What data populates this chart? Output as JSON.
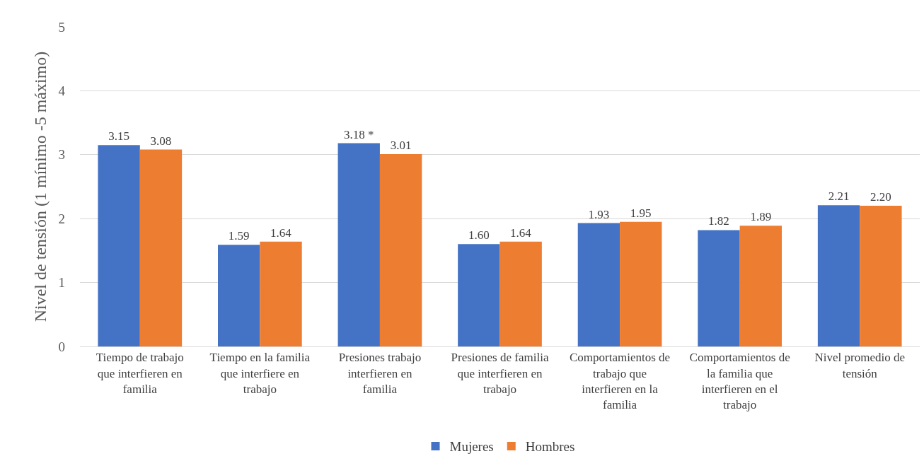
{
  "chart_data": {
    "type": "bar",
    "ylabel": "Nivel de tensión (1 mínimo -5 máximo)",
    "categories": [
      "Tiempo de trabajo que interfieren en familia",
      "Tiempo en la familia que interfiere en trabajo",
      "Presiones trabajo interfieren en familia",
      "Presiones de familia que interfieren en trabajo",
      "Comportamientos de trabajo que interfieren en la familia",
      "Comportamientos de la familia que interfieren en el trabajo",
      "Nivel promedio de tensión"
    ],
    "series": [
      {
        "name": "Mujeres",
        "color": "#4472c4",
        "values": [
          3.15,
          1.59,
          3.18,
          1.6,
          1.93,
          1.82,
          2.21
        ],
        "value_labels": [
          "3.15",
          "1.59",
          "3.18 *",
          "1.60",
          "1.93",
          "1.82",
          "2.21"
        ]
      },
      {
        "name": "Hombres",
        "color": "#ed7d31",
        "values": [
          3.08,
          1.64,
          3.01,
          1.64,
          1.95,
          1.89,
          2.2
        ],
        "value_labels": [
          "3.08",
          "1.64",
          "3.01",
          "1.64",
          "1.95",
          "1.89",
          "2.20"
        ]
      }
    ],
    "ylim": [
      0,
      5
    ],
    "yticks": [
      0,
      1,
      2,
      3,
      4,
      5
    ],
    "grid": "y",
    "legend": "bottom"
  }
}
